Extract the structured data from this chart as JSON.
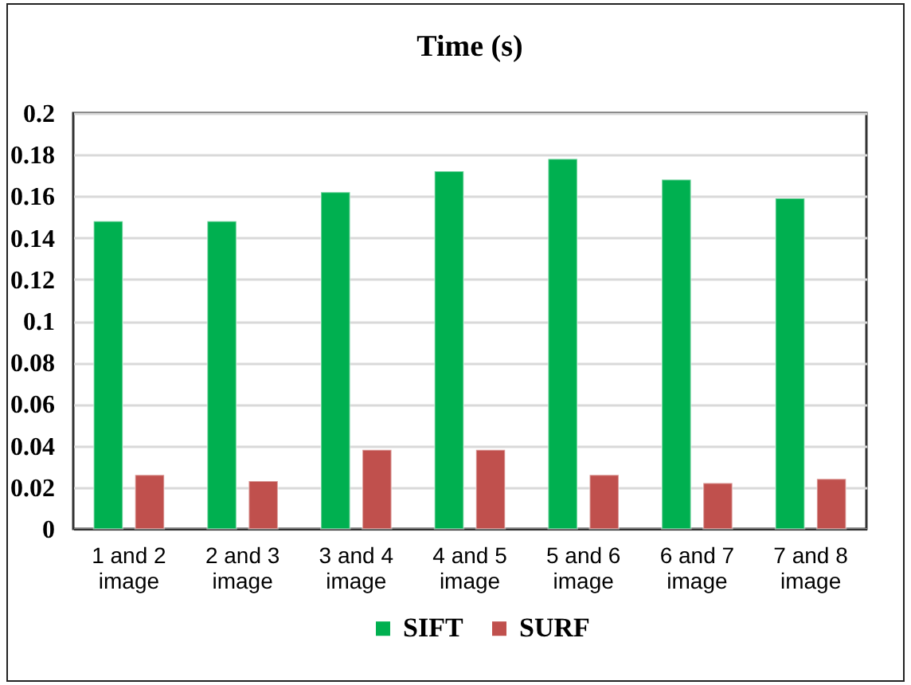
{
  "chart_data": {
    "type": "bar",
    "title": "Time (s)",
    "categories": [
      "1 and 2 image",
      "2 and 3 image",
      "3 and 4 image",
      "4 and 5 image",
      "5 and 6 image",
      "6 and 7 image",
      "7 and 8 image"
    ],
    "series": [
      {
        "name": "SIFT",
        "color": "#00b050",
        "values": [
          0.148,
          0.148,
          0.162,
          0.172,
          0.178,
          0.168,
          0.159
        ]
      },
      {
        "name": "SURF",
        "color": "#c0504d",
        "values": [
          0.026,
          0.023,
          0.038,
          0.038,
          0.026,
          0.022,
          0.024
        ]
      }
    ],
    "ylim": [
      0,
      0.2
    ],
    "yticks": [
      0,
      0.02,
      0.04,
      0.06,
      0.08,
      0.1,
      0.12,
      0.14,
      0.16,
      0.18,
      0.2
    ],
    "grid": "y",
    "legend": "bottom"
  }
}
